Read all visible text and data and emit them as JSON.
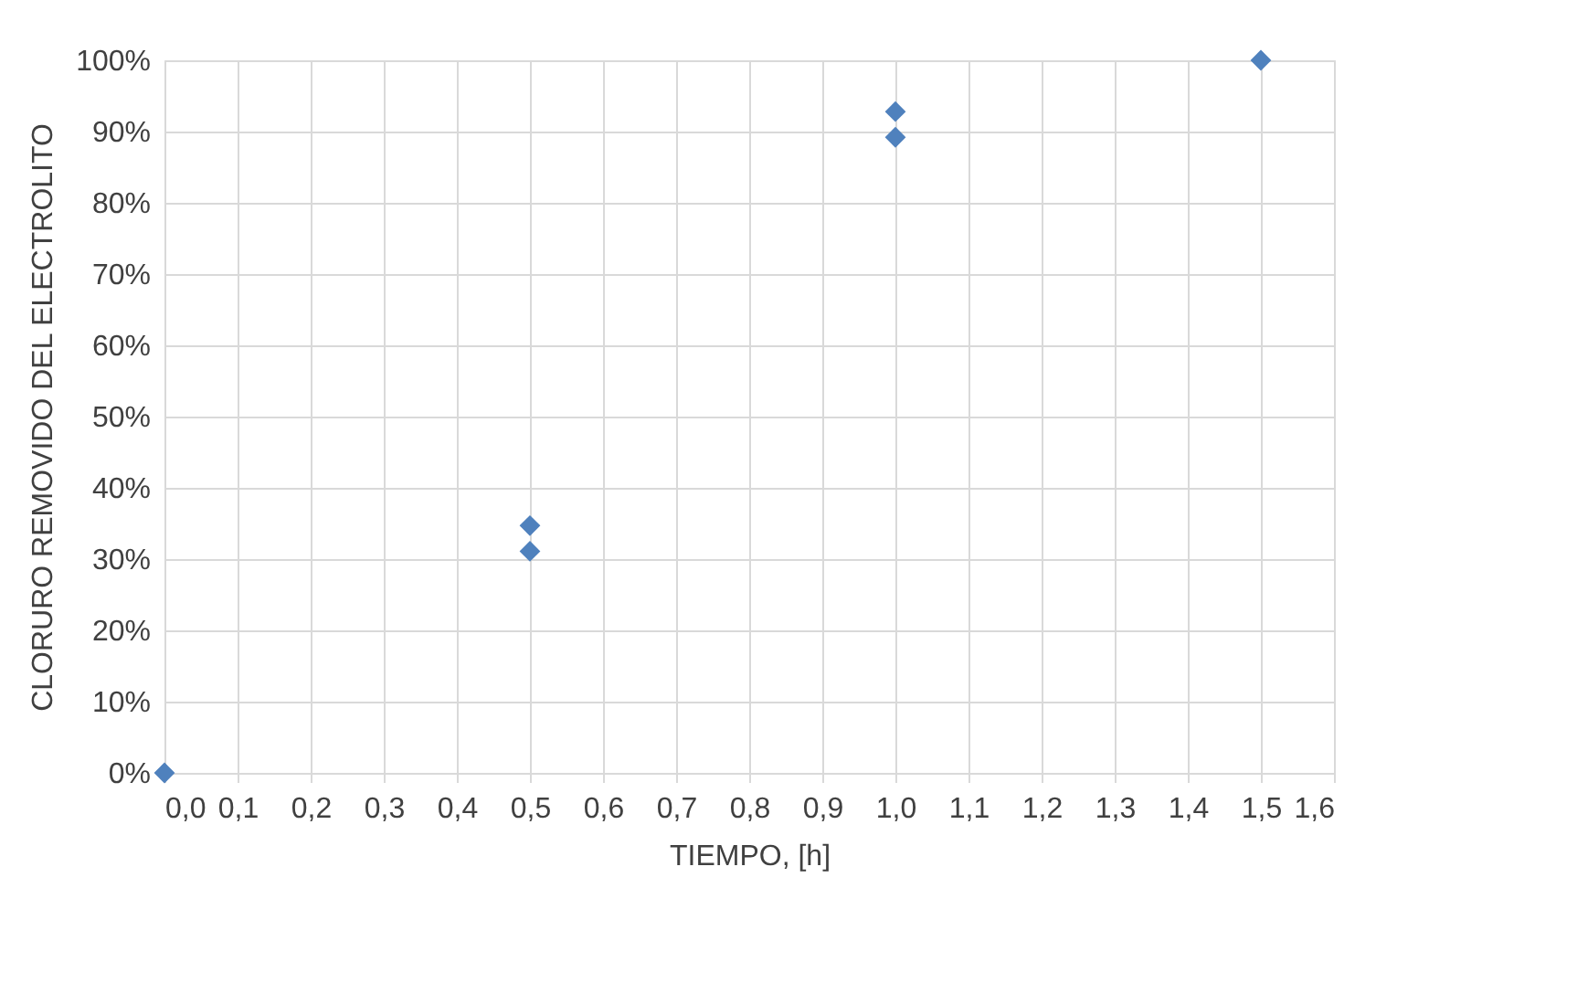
{
  "chart_data": {
    "type": "scatter",
    "xlabel": "TIEMPO, [h]",
    "ylabel": "CLORURO REMOVIDO DEL ELECTROLITO",
    "x": [
      0.0,
      0.5,
      0.5,
      1.0,
      1.0,
      1.5
    ],
    "series": [
      {
        "color": "#4f81bd",
        "values": [
          0,
          34.7,
          31.1,
          92.8,
          89.2,
          100
        ]
      }
    ],
    "xlim": [
      0,
      1.6
    ],
    "ylim": [
      0,
      100
    ],
    "xticks": [
      {
        "value": 0,
        "label": "0,0"
      },
      {
        "value": 0.1,
        "label": "0,1"
      },
      {
        "value": 0.2,
        "label": "0,2"
      },
      {
        "value": 0.3,
        "label": "0,3"
      },
      {
        "value": 0.4,
        "label": "0,4"
      },
      {
        "value": 0.5,
        "label": "0,5"
      },
      {
        "value": 0.6,
        "label": "0,6"
      },
      {
        "value": 0.7,
        "label": "0,7"
      },
      {
        "value": 0.8,
        "label": "0,8"
      },
      {
        "value": 0.9,
        "label": "0,9"
      },
      {
        "value": 1.0,
        "label": "1,0"
      },
      {
        "value": 1.1,
        "label": "1,1"
      },
      {
        "value": 1.2,
        "label": "1,2"
      },
      {
        "value": 1.3,
        "label": "1,3"
      },
      {
        "value": 1.4,
        "label": "1,4"
      },
      {
        "value": 1.5,
        "label": "1,5"
      },
      {
        "value": 1.6,
        "label": "1,6"
      }
    ],
    "yticks": [
      {
        "value": 0,
        "label": "0%"
      },
      {
        "value": 10,
        "label": "10%"
      },
      {
        "value": 20,
        "label": "20%"
      },
      {
        "value": 30,
        "label": "30%"
      },
      {
        "value": 40,
        "label": "40%"
      },
      {
        "value": 50,
        "label": "50%"
      },
      {
        "value": 60,
        "label": "60%"
      },
      {
        "value": 70,
        "label": "70%"
      },
      {
        "value": 80,
        "label": "80%"
      },
      {
        "value": 90,
        "label": "90%"
      },
      {
        "value": 100,
        "label": "100%"
      }
    ],
    "grid": true,
    "marker": "diamond"
  }
}
